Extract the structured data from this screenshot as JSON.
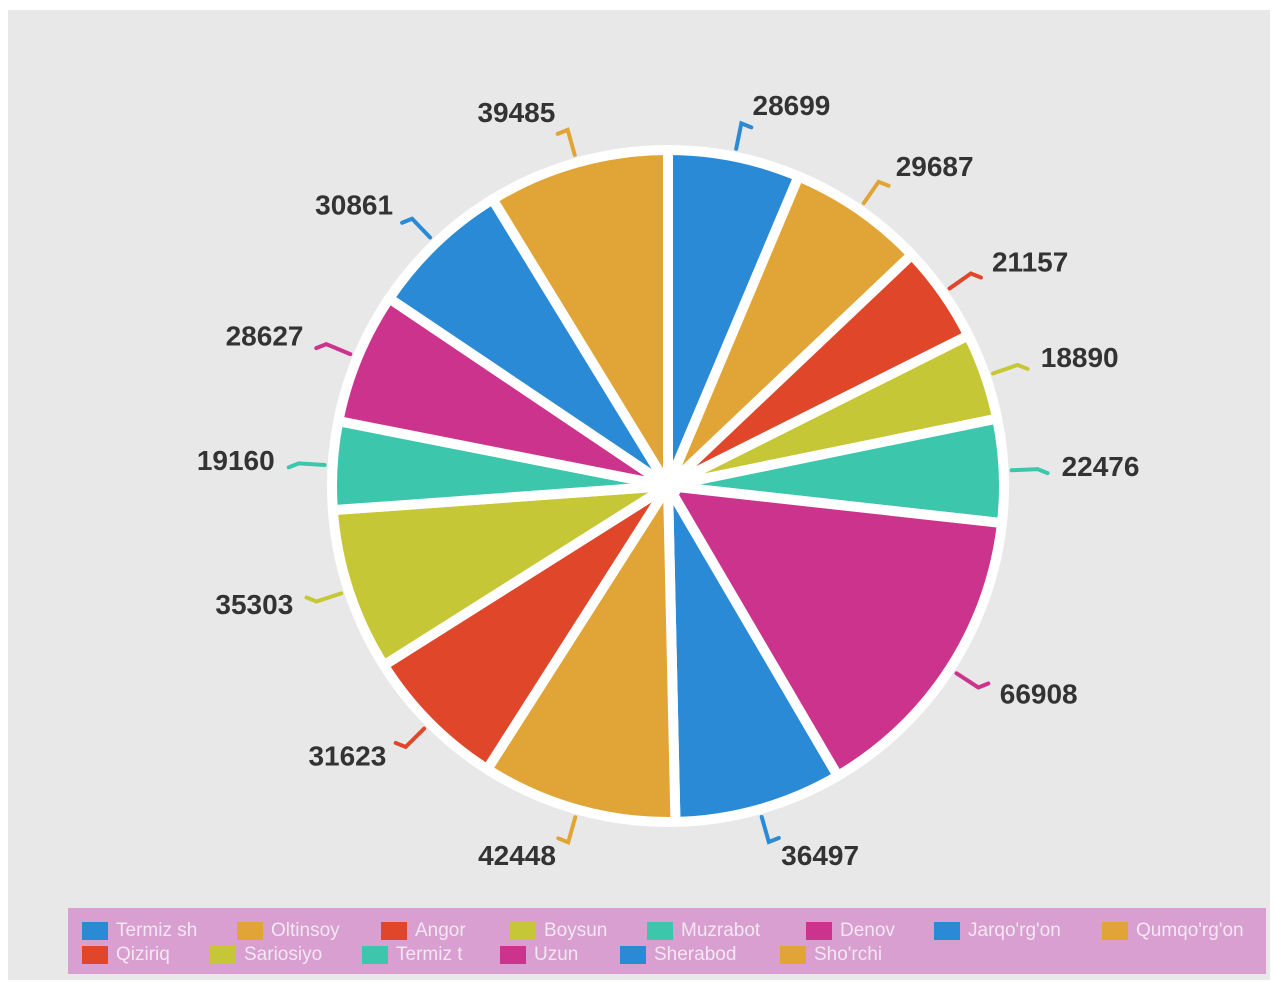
{
  "chart_data": {
    "type": "pie",
    "categories": [
      "Termiz sh",
      "Oltinsoy",
      "Angor",
      "Boysun",
      "Muzrabot",
      "Denov",
      "Jarqo'rg'on",
      "Qumqo'rg'on",
      "Qiziriq",
      "Sariosiyo",
      "Termiz t",
      "Uzun",
      "Sherabod",
      "Sho'rchi"
    ],
    "values": [
      28699,
      29687,
      21157,
      18890,
      22476,
      66908,
      36497,
      42448,
      31623,
      35303,
      19160,
      28627,
      30861,
      39485
    ],
    "colors": [
      "#2b8ad6",
      "#e0a536",
      "#e0462a",
      "#c6c736",
      "#3cc7ad",
      "#cc338d",
      "#2b8ad6",
      "#e0a536",
      "#e0462a",
      "#c6c736",
      "#3cc7ad",
      "#cc338d",
      "#2b8ad6",
      "#e0a536"
    ],
    "legend": "bottom"
  }
}
